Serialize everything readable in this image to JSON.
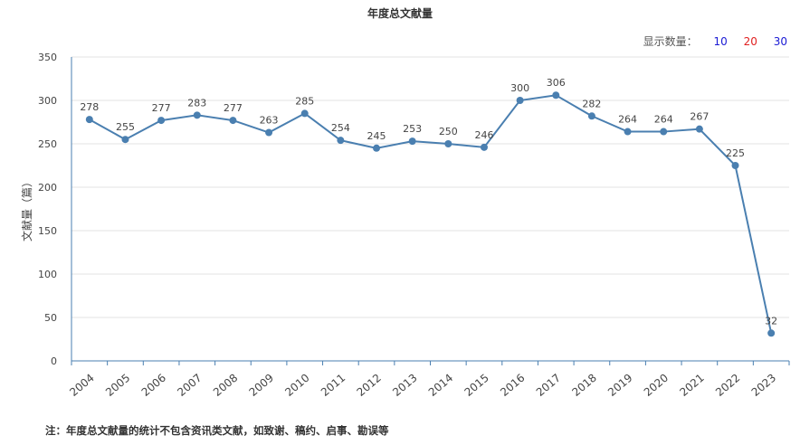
{
  "title": "年度总文献量",
  "count_control": {
    "label": "显示数量：",
    "options": [
      {
        "label": "10",
        "color": "#1a1ad4"
      },
      {
        "label": "20",
        "color": "#e02020"
      },
      {
        "label": "30",
        "color": "#1a1ad4"
      }
    ]
  },
  "footnote": "注：年度总文献量的统计不包含资讯类文献，如致谢、稿约、启事、勘误等",
  "chart_data": {
    "type": "line",
    "title": "年度总文献量",
    "xlabel": "",
    "ylabel": "文献量（篇）",
    "ylim": [
      0,
      350
    ],
    "yticks": [
      0,
      50,
      100,
      150,
      200,
      250,
      300,
      350
    ],
    "grid": true,
    "line_color": "#4a7fb0",
    "categories": [
      "2004",
      "2005",
      "2006",
      "2007",
      "2008",
      "2009",
      "2010",
      "2011",
      "2012",
      "2013",
      "2014",
      "2015",
      "2016",
      "2017",
      "2018",
      "2019",
      "2020",
      "2021",
      "2022",
      "2023"
    ],
    "values": [
      278,
      255,
      277,
      283,
      277,
      263,
      285,
      254,
      245,
      253,
      250,
      246,
      300,
      306,
      282,
      264,
      264,
      267,
      225,
      32
    ]
  }
}
